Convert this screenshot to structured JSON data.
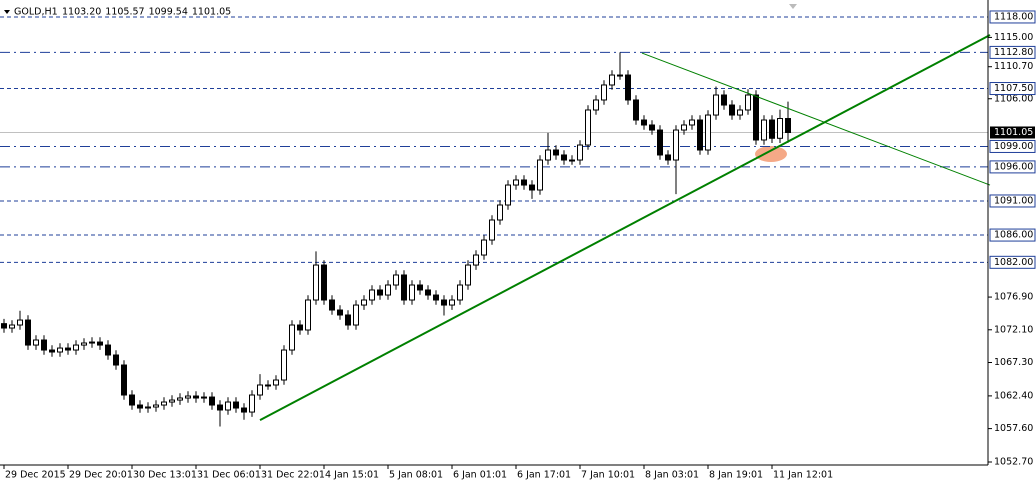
{
  "chart_data": {
    "type": "candlestick",
    "symbol": "GOLD,H1",
    "header_values": [
      {
        "value": 1103.2,
        "label": "1103.20"
      },
      {
        "value": 1105.57,
        "label": "1105.57"
      },
      {
        "value": 1099.54,
        "label": "1099.54"
      },
      {
        "value": 1101.05,
        "label": "1101.05"
      }
    ],
    "categories": [
      "29 Dec 2015",
      null,
      null,
      null,
      null,
      null,
      null,
      null,
      "29 Dec 20:01",
      null,
      null,
      null,
      null,
      null,
      null,
      null,
      "30 Dec 13:01",
      null,
      null,
      null,
      null,
      null,
      null,
      null,
      "31 Dec 06:01",
      null,
      null,
      null,
      null,
      null,
      null,
      null,
      "31 Dec 22:01",
      null,
      null,
      null,
      null,
      null,
      null,
      null,
      "4 Jan 15:01",
      null,
      null,
      null,
      null,
      null,
      null,
      null,
      "5 Jan 08:01",
      null,
      null,
      null,
      null,
      null,
      null,
      null,
      "6 Jan 01:01",
      null,
      null,
      null,
      null,
      null,
      null,
      null,
      "6 Jan 17:01",
      null,
      null,
      null,
      null,
      null,
      null,
      null,
      "7 Jan 10:01",
      null,
      null,
      null,
      null,
      null,
      null,
      null,
      "8 Jan 03:01",
      null,
      null,
      null,
      null,
      null,
      null,
      null,
      "8 Jan 19:01",
      null,
      null,
      null,
      null,
      null,
      null,
      null,
      "11 Jan 12:01",
      null,
      null
    ],
    "open": [
      1073.0,
      1072.36,
      1072.8,
      1073.53,
      1069.86,
      1070.6,
      1069.13,
      1068.84,
      1069.42,
      1069.13,
      1069.86,
      1070.16,
      1070.3,
      1069.86,
      1068.4,
      1066.93,
      1062.53,
      1061.06,
      1060.62,
      1060.77,
      1061.06,
      1061.5,
      1061.79,
      1062.09,
      1062.38,
      1062.09,
      1062.23,
      1061.06,
      1060.33,
      1061.5,
      1060.62,
      1060.03,
      1062.53,
      1064.0,
      1064.0,
      1064.73,
      1069.13,
      1072.8,
      1072.07,
      1076.47,
      1081.6,
      1076.47,
      1075.0,
      1074.27,
      1072.8,
      1075.73,
      1076.47,
      1077.94,
      1077.2,
      1078.67,
      1080.14,
      1076.47,
      1078.67,
      1077.94,
      1077.2,
      1076.47,
      1075.73,
      1076.47,
      1078.67,
      1081.6,
      1083.07,
      1085.27,
      1088.21,
      1090.41,
      1093.34,
      1094.08,
      1093.34,
      1092.61,
      1097.01,
      1098.48,
      1097.75,
      1097.01,
      1097.01,
      1099.21,
      1104.35,
      1105.82,
      1108.02,
      1109.48,
      1109.48,
      1105.82,
      1102.88,
      1102.15,
      1101.41,
      1097.75,
      1097.01,
      1101.41,
      1102.15,
      1102.88,
      1098.48,
      1103.61,
      1106.55,
      1105.08,
      1103.61,
      1104.35,
      1106.55,
      1099.95,
      1102.88,
      1100.2,
      1103.1
    ],
    "high": [
      1073.7,
      1073.5,
      1074.9,
      1074.23,
      1071.3,
      1071.3,
      1069.83,
      1070.12,
      1070.12,
      1070.56,
      1070.86,
      1071.0,
      1071.0,
      1070.56,
      1069.1,
      1067.63,
      1063.23,
      1061.76,
      1061.47,
      1061.76,
      1062.2,
      1062.49,
      1062.79,
      1063.08,
      1063.08,
      1062.93,
      1062.93,
      1061.76,
      1062.2,
      1062.2,
      1061.32,
      1063.23,
      1065.6,
      1064.7,
      1065.43,
      1069.83,
      1073.5,
      1073.5,
      1077.17,
      1083.6,
      1082.3,
      1077.17,
      1075.7,
      1074.97,
      1076.43,
      1077.17,
      1078.64,
      1078.64,
      1079.37,
      1080.84,
      1080.84,
      1079.37,
      1079.37,
      1078.64,
      1077.9,
      1077.17,
      1077.17,
      1079.37,
      1082.3,
      1083.77,
      1085.97,
      1088.91,
      1091.11,
      1094.04,
      1094.78,
      1094.78,
      1094.04,
      1097.71,
      1101.0,
      1099.18,
      1098.45,
      1097.71,
      1099.91,
      1105.05,
      1106.52,
      1108.72,
      1110.18,
      1112.8,
      1110.18,
      1106.52,
      1103.58,
      1102.85,
      1102.11,
      1098.45,
      1102.11,
      1102.85,
      1103.58,
      1103.58,
      1104.31,
      1107.8,
      1107.25,
      1105.78,
      1105.05,
      1107.4,
      1107.25,
      1103.58,
      1103.58,
      1104.4,
      1105.57
    ],
    "low": [
      1071.66,
      1071.66,
      1072.1,
      1069.16,
      1069.16,
      1068.43,
      1068.14,
      1068.14,
      1068.43,
      1068.43,
      1069.16,
      1069.46,
      1069.16,
      1067.7,
      1066.23,
      1061.83,
      1060.36,
      1059.92,
      1059.92,
      1060.07,
      1060.36,
      1060.8,
      1061.09,
      1061.39,
      1061.39,
      1061.39,
      1060.36,
      1057.9,
      1059.63,
      1059.92,
      1058.9,
      1059.33,
      1061.83,
      1063.3,
      1063.3,
      1064.03,
      1068.43,
      1071.37,
      1071.37,
      1075.77,
      1075.77,
      1074.3,
      1073.57,
      1072.1,
      1072.1,
      1075.03,
      1075.77,
      1076.5,
      1076.5,
      1077.97,
      1075.77,
      1075.77,
      1077.24,
      1076.5,
      1075.77,
      1074.2,
      1075.03,
      1075.77,
      1077.97,
      1080.9,
      1082.37,
      1084.57,
      1087.51,
      1089.71,
      1092.64,
      1092.64,
      1091.3,
      1091.91,
      1096.31,
      1097.05,
      1096.31,
      1096.31,
      1096.31,
      1098.51,
      1103.65,
      1105.12,
      1107.32,
      1108.78,
      1105.12,
      1102.18,
      1101.45,
      1100.71,
      1097.05,
      1096.31,
      1092.0,
      1100.71,
      1101.45,
      1097.78,
      1097.78,
      1102.91,
      1104.38,
      1102.91,
      1102.91,
      1103.65,
      1099.25,
      1099.25,
      1099.5,
      1099.5,
      1099.54
    ],
    "close": [
      1072.36,
      1072.8,
      1073.53,
      1069.86,
      1070.6,
      1069.13,
      1068.84,
      1069.42,
      1069.13,
      1069.86,
      1070.16,
      1070.3,
      1069.86,
      1068.4,
      1066.93,
      1062.53,
      1061.06,
      1060.62,
      1060.77,
      1061.06,
      1061.5,
      1061.79,
      1062.09,
      1062.38,
      1062.09,
      1062.23,
      1061.06,
      1060.33,
      1061.5,
      1060.62,
      1060.03,
      1062.53,
      1064.0,
      1064.0,
      1064.73,
      1069.13,
      1072.8,
      1072.07,
      1076.47,
      1081.6,
      1076.47,
      1075.0,
      1074.27,
      1072.8,
      1075.73,
      1076.47,
      1077.94,
      1077.2,
      1078.67,
      1080.14,
      1076.47,
      1078.67,
      1077.94,
      1077.2,
      1076.47,
      1075.73,
      1076.47,
      1078.67,
      1081.6,
      1083.07,
      1085.27,
      1088.21,
      1090.41,
      1093.34,
      1094.08,
      1093.34,
      1092.61,
      1097.01,
      1098.48,
      1097.75,
      1097.01,
      1097.01,
      1099.21,
      1104.35,
      1105.82,
      1108.02,
      1109.48,
      1109.48,
      1105.82,
      1102.88,
      1102.15,
      1101.41,
      1097.75,
      1097.01,
      1101.41,
      1102.15,
      1102.88,
      1098.48,
      1103.61,
      1106.55,
      1105.08,
      1103.61,
      1104.35,
      1106.55,
      1099.95,
      1102.88,
      1100.2,
      1103.1,
      1101.05
    ],
    "ylim": [
      1052.26,
      1120.49
    ],
    "yticks": [
      {
        "value": 1115.0,
        "label": "1115.00"
      },
      {
        "value": 1110.7,
        "label": "1110.70"
      },
      {
        "value": 1106.0,
        "label": "1106.00"
      },
      {
        "value": 1076.9,
        "label": "1076.90"
      },
      {
        "value": 1072.1,
        "label": "1072.10"
      },
      {
        "value": 1067.3,
        "label": "1067.30"
      },
      {
        "value": 1062.4,
        "label": "1062.40"
      },
      {
        "value": 1057.6,
        "label": "1057.60"
      },
      {
        "value": 1052.7,
        "label": "1052.70"
      }
    ],
    "levels": [
      {
        "value": 1118.0,
        "label": "1118.00",
        "style": "dash"
      },
      {
        "value": 1112.8,
        "label": "1112.80",
        "style": "dashdot"
      },
      {
        "value": 1107.5,
        "label": "1107.50",
        "style": "dash"
      },
      {
        "value": 1099.0,
        "label": "1099.00",
        "style": "dashdot"
      },
      {
        "value": 1096.0,
        "label": "1096.00",
        "style": "dashdot"
      },
      {
        "value": 1091.0,
        "label": "1091.00",
        "style": "dash"
      },
      {
        "value": 1086.0,
        "label": "1086.00",
        "style": "dash"
      },
      {
        "value": 1082.0,
        "label": "1082.00",
        "style": "dash"
      }
    ],
    "level_color": "#1f3f99",
    "current_price": {
      "value": 1101.05,
      "label": "1101.05"
    },
    "trend_lines": [
      {
        "color": "#008000",
        "style": "thick",
        "x": [
          32,
          123.25
        ],
        "y": [
          1058.85,
          1115.35
        ]
      },
      {
        "color": "#008000",
        "style": "thin",
        "x": [
          79.75,
          123.25
        ],
        "y": [
          1112.7,
          1093.34
        ]
      }
    ],
    "bull_color": "#ffffff",
    "bear_color": "#000000"
  }
}
